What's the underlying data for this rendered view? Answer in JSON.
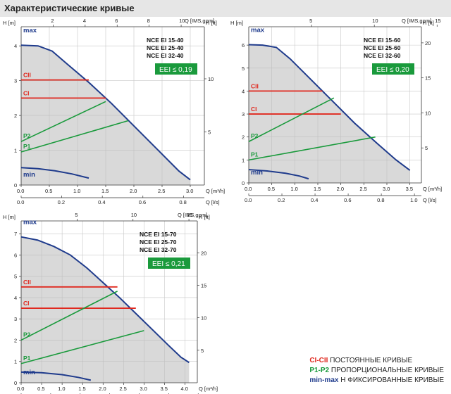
{
  "page": {
    "title": "Характеристические кривые"
  },
  "legend": [
    {
      "code": "CI-CII",
      "text": "ПОСТОЯННЫЕ КРИВЫЕ",
      "color": "#e0281e"
    },
    {
      "code": "P1-P2",
      "text": "ПРОПОРЦИОНАЛЬНЫЕ КРИВЫЕ",
      "color": "#1a9a3c"
    },
    {
      "code": "min-max",
      "text": "Н ФИКСИРОВАННЫЕ КРИВЫЕ",
      "color": "#1f3b8c"
    }
  ],
  "colors": {
    "max_curve": "#1f3b8c",
    "constant": "#e0281e",
    "proportional": "#1a9a3c",
    "eei_box": "#1a9a3c",
    "fill": "#b9b9b9"
  },
  "chart_data": [
    {
      "type": "line",
      "models": [
        "NCE EI 15-40",
        "NCE EI 25-40",
        "NCE EI 32-40"
      ],
      "eei": "EEI ≤ 0,19",
      "ylabel_left": "H [m]",
      "ylabel_right": "H [ft]",
      "xlabel_top": "Q [IMS,gpm]",
      "xlabel_bottom1": "Q [m³/h]",
      "xlabel_bottom2": "Q [l/s]",
      "xlim": [
        0,
        3.25
      ],
      "ylim": [
        0,
        4.55
      ],
      "h_ticks": [
        "0",
        "1",
        "2",
        "3",
        "4"
      ],
      "h_tick_values": [
        0,
        1,
        2,
        3,
        4
      ],
      "ft_ticks": [
        "5",
        "10"
      ],
      "ft_tick_values": [
        5,
        10
      ],
      "q_m3h_ticks": [
        "0.0",
        "0.5",
        "1.0",
        "1.5",
        "2.0",
        "2.5",
        "3.0"
      ],
      "q_m3h_values": [
        0,
        0.5,
        1,
        1.5,
        2,
        2.5,
        3
      ],
      "q_ls_ticks": [
        "0.0",
        "0.2",
        "0.4",
        "0.6",
        "0.8"
      ],
      "q_ls_values": [
        0,
        0.2,
        0.4,
        0.6,
        0.8
      ],
      "gpm_ticks": [
        "2",
        "4",
        "6",
        "8",
        "10"
      ],
      "gpm_values": [
        2,
        4,
        6,
        8,
        10
      ],
      "max_curve": {
        "name": "max",
        "x": [
          0,
          0.3,
          0.55,
          0.8,
          1.2,
          1.6,
          2.0,
          2.4,
          2.8,
          3.0
        ],
        "y": [
          4.02,
          4.0,
          3.85,
          3.5,
          2.95,
          2.35,
          1.7,
          1.05,
          0.4,
          0.15
        ]
      },
      "min_curve": {
        "name": "min",
        "x": [
          0,
          0.3,
          0.6,
          0.9,
          1.2
        ],
        "y": [
          0.5,
          0.47,
          0.41,
          0.32,
          0.2
        ]
      },
      "constant": [
        {
          "name": "CII",
          "x": [
            0,
            1.2
          ],
          "y": [
            3.02,
            3.02
          ]
        },
        {
          "name": "CI",
          "x": [
            0,
            1.5
          ],
          "y": [
            2.5,
            2.5
          ]
        }
      ],
      "proportional": [
        {
          "name": "P2",
          "x": [
            0,
            1.5
          ],
          "y": [
            1.25,
            2.4
          ]
        },
        {
          "name": "P1",
          "x": [
            0,
            1.9
          ],
          "y": [
            0.95,
            1.85
          ]
        }
      ]
    },
    {
      "type": "line",
      "models": [
        "NCE EI 15-60",
        "NCE EI 25-60",
        "NCE EI 32-60"
      ],
      "eei": "EEI ≤ 0,20",
      "ylabel_left": "H [m]",
      "ylabel_right": "H [ft]",
      "xlabel_top": "Q [IMS,gpm]",
      "xlabel_bottom1": "Q [m³/h]",
      "xlabel_bottom2": "Q [l/s]",
      "xlim": [
        0,
        3.75
      ],
      "ylim": [
        0,
        6.8
      ],
      "h_ticks": [
        "0",
        "1",
        "2",
        "3",
        "4",
        "5",
        "6"
      ],
      "h_tick_values": [
        0,
        1,
        2,
        3,
        4,
        5,
        6
      ],
      "ft_ticks": [
        "5",
        "10",
        "15",
        "20"
      ],
      "ft_tick_values": [
        5,
        10,
        15,
        20
      ],
      "q_m3h_ticks": [
        "0.0",
        "0.5",
        "1.0",
        "1.5",
        "2.0",
        "2.5",
        "3.0",
        "3.5"
      ],
      "q_m3h_values": [
        0,
        0.5,
        1,
        1.5,
        2,
        2.5,
        3,
        3.5
      ],
      "q_ls_ticks": [
        "0.0",
        "0.2",
        "0.4",
        "0.6",
        "0.8",
        "1.0"
      ],
      "q_ls_values": [
        0,
        0.2,
        0.4,
        0.6,
        0.8,
        1.0
      ],
      "gpm_ticks": [
        "5",
        "10",
        "15"
      ],
      "gpm_values": [
        5,
        10,
        15
      ],
      "max_curve": {
        "name": "max",
        "x": [
          0,
          0.3,
          0.6,
          0.9,
          1.3,
          1.8,
          2.3,
          2.8,
          3.2,
          3.5
        ],
        "y": [
          6.02,
          6.0,
          5.9,
          5.4,
          4.6,
          3.6,
          2.6,
          1.7,
          1.0,
          0.55
        ]
      },
      "min_curve": {
        "name": "min",
        "x": [
          0,
          0.4,
          0.8,
          1.1,
          1.3
        ],
        "y": [
          0.58,
          0.52,
          0.42,
          0.3,
          0.18
        ]
      },
      "constant": [
        {
          "name": "CII",
          "x": [
            0,
            1.6
          ],
          "y": [
            4.0,
            4.0
          ]
        },
        {
          "name": "CI",
          "x": [
            0,
            2.0
          ],
          "y": [
            3.0,
            3.0
          ]
        }
      ],
      "proportional": [
        {
          "name": "P2",
          "x": [
            0,
            1.85
          ],
          "y": [
            1.8,
            3.7
          ]
        },
        {
          "name": "P1",
          "x": [
            0,
            2.75
          ],
          "y": [
            1.0,
            2.0
          ]
        }
      ]
    },
    {
      "type": "line",
      "models": [
        "NCE EI 15-70",
        "NCE EI 25-70",
        "NCE EI 32-70"
      ],
      "eei": "EEI ≤ 0,21",
      "ylabel_left": "H [m]",
      "ylabel_right": "H [ft]",
      "xlabel_top": "Q [IMS,gpm]",
      "xlabel_bottom1": "Q [m³/h]",
      "xlabel_bottom2": "Q [l/s]",
      "xlim": [
        0,
        4.3
      ],
      "ylim": [
        0,
        7.6
      ],
      "h_ticks": [
        "0",
        "1",
        "2",
        "3",
        "4",
        "5",
        "6",
        "7"
      ],
      "h_tick_values": [
        0,
        1,
        2,
        3,
        4,
        5,
        6,
        7
      ],
      "ft_ticks": [
        "5",
        "10",
        "15",
        "20"
      ],
      "ft_tick_values": [
        5,
        10,
        15,
        20
      ],
      "q_m3h_ticks": [
        "0.0",
        "0.5",
        "1.0",
        "1.5",
        "2.0",
        "2.5",
        "3.0",
        "3.5",
        "4.0"
      ],
      "q_m3h_values": [
        0,
        0.5,
        1,
        1.5,
        2,
        2.5,
        3,
        3.5,
        4
      ],
      "q_ls_ticks": [
        "0.0",
        "0.2",
        "0.4",
        "0.6",
        "0.8",
        "1.0",
        "1.2"
      ],
      "q_ls_values": [
        0,
        0.2,
        0.4,
        0.6,
        0.8,
        1.0,
        1.2
      ],
      "gpm_ticks": [
        "5",
        "10",
        "15"
      ],
      "gpm_values": [
        5,
        10,
        15
      ],
      "max_curve": {
        "name": "max",
        "x": [
          0,
          0.4,
          0.8,
          1.2,
          1.6,
          2.0,
          2.4,
          2.8,
          3.2,
          3.6,
          3.9,
          4.1
        ],
        "y": [
          6.85,
          6.7,
          6.4,
          6.0,
          5.4,
          4.7,
          4.0,
          3.25,
          2.5,
          1.75,
          1.2,
          0.95
        ]
      },
      "min_curve": {
        "name": "min",
        "x": [
          0,
          0.5,
          1.0,
          1.4,
          1.7
        ],
        "y": [
          0.5,
          0.47,
          0.38,
          0.25,
          0.12
        ]
      },
      "constant": [
        {
          "name": "CII",
          "x": [
            0,
            2.35
          ],
          "y": [
            4.5,
            4.5
          ]
        },
        {
          "name": "CI",
          "x": [
            0,
            2.8
          ],
          "y": [
            3.5,
            3.5
          ]
        }
      ],
      "proportional": [
        {
          "name": "P2",
          "x": [
            0,
            2.35
          ],
          "y": [
            2.0,
            4.3
          ]
        },
        {
          "name": "P1",
          "x": [
            0,
            3.0
          ],
          "y": [
            0.9,
            2.45
          ]
        }
      ]
    }
  ]
}
